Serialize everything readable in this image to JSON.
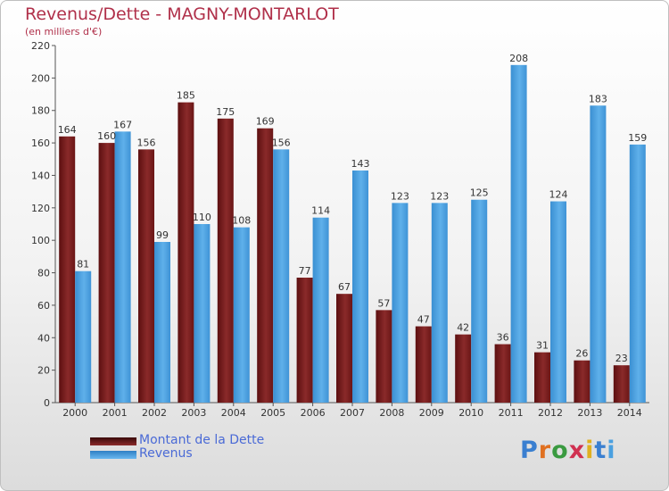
{
  "title": "Revenus/Dette - MAGNY-MONTARLOT",
  "subtitle": "(en milliers d'€)",
  "logo": "Proxiti",
  "colors": {
    "debt": "#7a1c1c",
    "revenue": "#4aa0e0",
    "title": "#b0304a",
    "legend_text": "#4a6ad6"
  },
  "chart_data": {
    "type": "bar",
    "title": "Revenus/Dette - MAGNY-MONTARLOT",
    "ylabel": "(en milliers d'€)",
    "ylim": [
      0,
      220
    ],
    "yticks": [
      0,
      20,
      40,
      60,
      80,
      100,
      120,
      140,
      160,
      180,
      200,
      220
    ],
    "grid": false,
    "legend_position": "bottom-left",
    "categories": [
      "2000",
      "2001",
      "2002",
      "2003",
      "2004",
      "2005",
      "2006",
      "2007",
      "2008",
      "2009",
      "2010",
      "2011",
      "2012",
      "2013",
      "2014"
    ],
    "series": [
      {
        "name": "Montant de la Dette",
        "color": "#7a1c1c",
        "values": [
          164,
          160,
          156,
          185,
          175,
          169,
          77,
          67,
          57,
          47,
          42,
          36,
          31,
          26,
          23
        ]
      },
      {
        "name": "Revenus",
        "color": "#4aa0e0",
        "values": [
          81,
          167,
          99,
          110,
          108,
          156,
          114,
          143,
          123,
          123,
          125,
          208,
          124,
          183,
          159
        ]
      }
    ]
  }
}
